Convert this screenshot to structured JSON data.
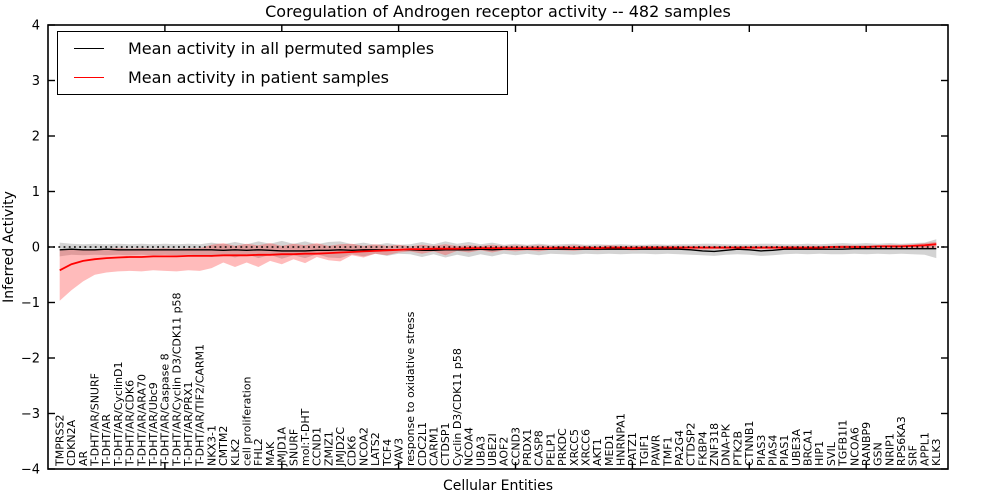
{
  "chart_data": {
    "type": "line",
    "title": "Coregulation of Androgen receptor activity -- 482 samples",
    "xlabel": "Cellular Entities",
    "ylabel": "Inferred Activity",
    "ylim": [
      -4,
      4
    ],
    "grid": false,
    "legend_position": "upper left",
    "reference_line": {
      "y": 0,
      "style": "dotted",
      "color": "#000000"
    },
    "y_ticks": [
      4,
      3,
      2,
      1,
      0,
      -1,
      -2,
      -3,
      -4
    ],
    "y_tick_labels": [
      "4",
      "3",
      "2",
      "1",
      "0",
      "−1",
      "−2",
      "−3",
      "−4"
    ],
    "x_major_tick_positions": [
      10,
      20,
      30,
      40,
      50,
      60,
      70
    ],
    "categories": [
      "TMPRSS2",
      "CDKN2A",
      "AR",
      "T-DHT/AR/SNURF",
      "T-DHT/AR",
      "T-DHT/AR/CyclinD1",
      "T-DHT/AR/CDK6",
      "T-DHT/AR/ARA70",
      "T-DHT/AR/Ubc9",
      "T-DHT/AR/Caspase 8",
      "T-DHT/AR/Cyclin D3/CDK11 p58",
      "T-DHT/AR/PRX1",
      "T-DHT/AR/TIF2/CARM1",
      "NKX3-1",
      "CMTM2",
      "KLK2",
      "cell proliferation",
      "FHL2",
      "MAK",
      "JMJD1A",
      "SNURF",
      "mol:T-DHT",
      "CCND1",
      "ZMIZ1",
      "JMJD2C",
      "CDK6",
      "NCOA2",
      "LATS2",
      "TCF4",
      "VAV3",
      "response to oxidative stress",
      "CDC2L1",
      "CARM1",
      "CTDSP1",
      "Cyclin D3/CDK11 p58",
      "NCOA4",
      "UBA3",
      "UBE2I",
      "AOF2",
      "CCND3",
      "PRDX1",
      "CASP8",
      "PELP1",
      "PRKDC",
      "XRCC5",
      "XRCC6",
      "AKT1",
      "MED1",
      "HNRNPA1",
      "PATZ1",
      "TGIF1",
      "PAWR",
      "TMF1",
      "PA2G4",
      "CTDSP2",
      "FKBP4",
      "ZNF318",
      "DNA-PK",
      "PTK2B",
      "CTNNB1",
      "PIAS3",
      "PIAS4",
      "PIAS1",
      "UBE3A",
      "BRCA1",
      "HIP1",
      "SVIL",
      "TGFB1I1",
      "NCOA6",
      "RANBP9",
      "GSN",
      "NRIP1",
      "RPS6KA3",
      "SRF",
      "APPL1",
      "KLK3"
    ],
    "series": [
      {
        "name": "Mean activity in all permuted samples",
        "color": "#000000",
        "band_color": "rgba(130,130,130,0.35)",
        "values": [
          -0.05,
          -0.04,
          -0.05,
          -0.05,
          -0.04,
          -0.05,
          -0.05,
          -0.05,
          -0.05,
          -0.05,
          -0.05,
          -0.05,
          -0.05,
          -0.05,
          -0.06,
          -0.05,
          -0.06,
          -0.05,
          -0.06,
          -0.07,
          -0.07,
          -0.07,
          -0.06,
          -0.06,
          -0.05,
          -0.06,
          -0.05,
          -0.05,
          -0.05,
          -0.05,
          -0.05,
          -0.06,
          -0.06,
          -0.05,
          -0.05,
          -0.05,
          -0.04,
          -0.05,
          -0.04,
          -0.04,
          -0.04,
          -0.04,
          -0.04,
          -0.04,
          -0.04,
          -0.04,
          -0.04,
          -0.04,
          -0.04,
          -0.04,
          -0.04,
          -0.04,
          -0.04,
          -0.04,
          -0.05,
          -0.07,
          -0.08,
          -0.06,
          -0.04,
          -0.05,
          -0.07,
          -0.06,
          -0.04,
          -0.04,
          -0.04,
          -0.04,
          -0.04,
          -0.04,
          -0.03,
          -0.03,
          -0.03,
          -0.03,
          -0.03,
          -0.03,
          -0.03,
          -0.03
        ],
        "band_upper": [
          0.08,
          0.06,
          0.05,
          0.06,
          0.05,
          0.06,
          0.05,
          0.06,
          0.05,
          0.06,
          0.05,
          0.06,
          0.05,
          0.08,
          0.05,
          0.09,
          0.05,
          0.1,
          0.06,
          0.11,
          0.06,
          0.1,
          0.05,
          0.09,
          0.1,
          0.05,
          0.08,
          0.04,
          0.07,
          0.04,
          0.05,
          0.09,
          0.05,
          0.1,
          0.06,
          0.09,
          0.05,
          0.08,
          0.04,
          0.06,
          0.04,
          0.06,
          0.04,
          0.05,
          0.06,
          0.04,
          0.05,
          0.04,
          0.05,
          0.04,
          0.04,
          0.05,
          0.04,
          0.05,
          0.05,
          0.06,
          0.06,
          0.05,
          0.05,
          0.05,
          0.06,
          0.06,
          0.05,
          0.05,
          0.06,
          0.05,
          0.06,
          0.07,
          0.06,
          0.07,
          0.06,
          0.07,
          0.06,
          0.07,
          0.08,
          0.14
        ],
        "band_lower": [
          -0.17,
          -0.14,
          -0.15,
          -0.14,
          -0.15,
          -0.14,
          -0.15,
          -0.14,
          -0.15,
          -0.14,
          -0.15,
          -0.14,
          -0.15,
          -0.18,
          -0.13,
          -0.19,
          -0.13,
          -0.2,
          -0.14,
          -0.21,
          -0.15,
          -0.2,
          -0.13,
          -0.19,
          -0.2,
          -0.13,
          -0.17,
          -0.12,
          -0.16,
          -0.12,
          -0.13,
          -0.18,
          -0.13,
          -0.19,
          -0.14,
          -0.18,
          -0.13,
          -0.17,
          -0.12,
          -0.15,
          -0.12,
          -0.15,
          -0.12,
          -0.13,
          -0.14,
          -0.12,
          -0.13,
          -0.12,
          -0.13,
          -0.12,
          -0.12,
          -0.13,
          -0.12,
          -0.13,
          -0.14,
          -0.15,
          -0.16,
          -0.14,
          -0.13,
          -0.14,
          -0.16,
          -0.15,
          -0.13,
          -0.12,
          -0.13,
          -0.12,
          -0.13,
          -0.13,
          -0.12,
          -0.13,
          -0.12,
          -0.13,
          -0.12,
          -0.13,
          -0.14,
          -0.2
        ]
      },
      {
        "name": "Mean activity in patient samples",
        "color": "#ff0000",
        "band_color": "rgba(255,30,30,0.30)",
        "values": [
          -0.42,
          -0.31,
          -0.25,
          -0.22,
          -0.2,
          -0.19,
          -0.18,
          -0.18,
          -0.17,
          -0.17,
          -0.17,
          -0.16,
          -0.16,
          -0.16,
          -0.15,
          -0.15,
          -0.15,
          -0.14,
          -0.14,
          -0.13,
          -0.13,
          -0.12,
          -0.12,
          -0.11,
          -0.1,
          -0.09,
          -0.08,
          -0.07,
          -0.06,
          -0.05,
          -0.04,
          -0.04,
          -0.03,
          -0.03,
          -0.03,
          -0.02,
          -0.02,
          -0.02,
          -0.02,
          -0.02,
          -0.02,
          -0.02,
          -0.02,
          -0.01,
          -0.02,
          -0.01,
          -0.02,
          -0.01,
          -0.01,
          -0.02,
          -0.01,
          -0.01,
          -0.01,
          -0.01,
          -0.01,
          -0.01,
          -0.01,
          -0.01,
          -0.01,
          -0.01,
          -0.01,
          -0.01,
          -0.01,
          -0.01,
          -0.01,
          -0.01,
          0.0,
          0.0,
          0.0,
          0.0,
          0.01,
          0.01,
          0.01,
          0.02,
          0.03,
          0.05
        ],
        "band_upper": [
          -0.06,
          -0.05,
          -0.04,
          -0.04,
          -0.03,
          -0.02,
          -0.03,
          -0.02,
          -0.03,
          -0.02,
          -0.03,
          -0.02,
          -0.02,
          0.04,
          0.07,
          0.02,
          0.06,
          0.03,
          0.07,
          0.02,
          0.06,
          0.03,
          0.07,
          0.02,
          0.05,
          0.06,
          0.02,
          0.05,
          0.02,
          0.04,
          0.01,
          0.04,
          0.02,
          0.05,
          0.02,
          0.03,
          0.02,
          0.04,
          0.02,
          0.03,
          0.02,
          0.03,
          0.02,
          0.02,
          0.03,
          0.02,
          0.02,
          0.03,
          0.02,
          0.02,
          0.02,
          0.02,
          0.02,
          0.02,
          0.02,
          0.02,
          0.02,
          0.02,
          0.02,
          0.02,
          0.02,
          0.02,
          0.02,
          0.02,
          0.02,
          0.02,
          0.02,
          0.03,
          0.03,
          0.03,
          0.03,
          0.04,
          0.04,
          0.05,
          0.07,
          0.09
        ],
        "band_lower": [
          -0.97,
          -0.78,
          -0.62,
          -0.5,
          -0.46,
          -0.44,
          -0.43,
          -0.44,
          -0.42,
          -0.43,
          -0.44,
          -0.42,
          -0.43,
          -0.38,
          -0.28,
          -0.36,
          -0.28,
          -0.36,
          -0.25,
          -0.31,
          -0.22,
          -0.29,
          -0.18,
          -0.24,
          -0.26,
          -0.15,
          -0.19,
          -0.12,
          -0.15,
          -0.1,
          -0.08,
          -0.12,
          -0.08,
          -0.15,
          -0.07,
          -0.1,
          -0.06,
          -0.1,
          -0.06,
          -0.08,
          -0.06,
          -0.08,
          -0.05,
          -0.06,
          -0.07,
          -0.05,
          -0.06,
          -0.05,
          -0.05,
          -0.06,
          -0.05,
          -0.05,
          -0.04,
          -0.05,
          -0.04,
          -0.05,
          -0.04,
          -0.04,
          -0.04,
          -0.04,
          -0.04,
          -0.04,
          -0.04,
          -0.04,
          -0.04,
          -0.04,
          -0.04,
          -0.04,
          -0.04,
          -0.04,
          -0.03,
          -0.03,
          -0.03,
          -0.02,
          -0.02,
          -0.02
        ]
      }
    ]
  },
  "legend": {
    "entries": [
      {
        "label": "Mean activity in all permuted samples",
        "color": "#000000"
      },
      {
        "label": "Mean activity in patient samples",
        "color": "#ff0000"
      }
    ]
  }
}
